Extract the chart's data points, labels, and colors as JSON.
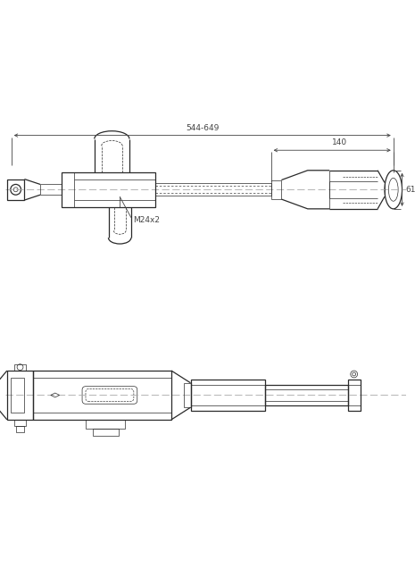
{
  "bg_color": "#ffffff",
  "line_color": "#2a2a2a",
  "dim_color": "#444444",
  "lw_main": 0.9,
  "lw_thin": 0.5,
  "lw_dim": 0.6,
  "lw_dash": 0.45,
  "dim_544_649": "544-649",
  "dim_140": "140",
  "dim_61": "61",
  "dim_M24x2": "M24x2",
  "fontsize_dim": 6.5
}
